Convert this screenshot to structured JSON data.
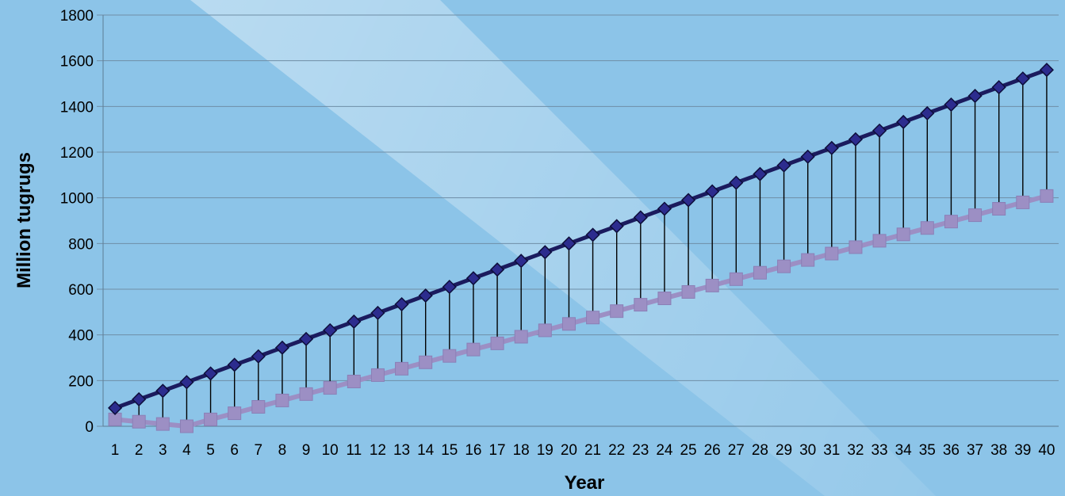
{
  "chart_data": {
    "type": "line",
    "title": "",
    "xlabel": "Year",
    "ylabel": "Million tugrugs",
    "ylim": [
      0,
      1800
    ],
    "yticks": [
      "0",
      "200",
      "400",
      "600",
      "800",
      "1000",
      "1200",
      "1400",
      "1600",
      "1800"
    ],
    "categories": [
      "1",
      "2",
      "3",
      "4",
      "5",
      "6",
      "7",
      "8",
      "9",
      "10",
      "11",
      "12",
      "13",
      "14",
      "15",
      "16",
      "17",
      "18",
      "19",
      "20",
      "21",
      "22",
      "23",
      "24",
      "25",
      "26",
      "27",
      "28",
      "29",
      "30",
      "31",
      "32",
      "33",
      "34",
      "35",
      "36",
      "37",
      "38",
      "39",
      "40"
    ],
    "grid": "horizontal",
    "legend": "none",
    "drop_lines": true,
    "series": [
      {
        "marker": "diamond",
        "color": "#1b1b5e",
        "marker_color": "#2c2c8e",
        "values": [
          80,
          118,
          155,
          193,
          231,
          269,
          306,
          344,
          382,
          420,
          458,
          496,
          534,
          572,
          610,
          648,
          686,
          724,
          762,
          800,
          838,
          876,
          914,
          952,
          990,
          1028,
          1066,
          1104,
          1142,
          1180,
          1218,
          1256,
          1294,
          1332,
          1370,
          1408,
          1446,
          1484,
          1522,
          1560
        ]
      },
      {
        "marker": "square",
        "color": "#9c8fc4",
        "marker_color": "#9c8fc4",
        "values": [
          30,
          20,
          10,
          0,
          30,
          57,
          85,
          113,
          141,
          168,
          196,
          224,
          252,
          280,
          308,
          336,
          363,
          392,
          420,
          448,
          476,
          504,
          532,
          560,
          588,
          616,
          644,
          672,
          700,
          728,
          756,
          784,
          812,
          840,
          868,
          896,
          924,
          952,
          980,
          1008
        ]
      }
    ],
    "colors": {
      "background": "#8cc4e8",
      "light_band": "#c4e2f4",
      "gridline": "#6f8ea6",
      "drop_line": "#000000"
    }
  }
}
